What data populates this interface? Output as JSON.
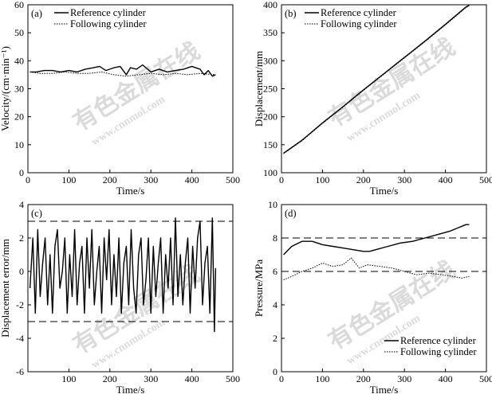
{
  "watermark": {
    "text": "有色金属在线",
    "url": "www.cnnmol.com"
  },
  "chart_data": [
    {
      "id": "a",
      "panel_label": "(a)",
      "type": "line",
      "xlabel": "Time/s",
      "ylabel": "Velocity/(cm·min⁻¹)",
      "xlim": [
        0,
        500
      ],
      "ylim": [
        0,
        60
      ],
      "xticks": [
        0,
        100,
        200,
        300,
        400,
        500
      ],
      "yticks": [
        0,
        10,
        20,
        30,
        40,
        50,
        60
      ],
      "legend_position": "top-left",
      "series": [
        {
          "name": "Reference cylinder",
          "style": "solid",
          "x": [
            5,
            20,
            40,
            60,
            80,
            100,
            120,
            140,
            160,
            175,
            190,
            210,
            225,
            240,
            250,
            265,
            280,
            300,
            320,
            340,
            360,
            380,
            400,
            420,
            430,
            440,
            450,
            458
          ],
          "y": [
            36,
            36,
            36.5,
            36.5,
            36,
            36.5,
            36,
            37,
            37.5,
            38,
            36.5,
            37.5,
            38,
            35,
            37.5,
            37,
            38.5,
            36,
            37,
            36,
            36.5,
            37,
            38,
            37,
            35,
            36.5,
            34.5,
            35
          ]
        },
        {
          "name": "Following cylinder",
          "style": "dotted",
          "x": [
            5,
            30,
            60,
            90,
            120,
            150,
            180,
            210,
            240,
            270,
            300,
            330,
            360,
            390,
            420,
            458
          ],
          "y": [
            36,
            35.5,
            35.5,
            36,
            35.5,
            35.5,
            36,
            35,
            34.5,
            35,
            35.5,
            35,
            35.5,
            35,
            35.5,
            35
          ]
        }
      ]
    },
    {
      "id": "b",
      "panel_label": "(b)",
      "type": "line",
      "xlabel": "Time/s",
      "ylabel": "Displacement/mm",
      "xlim": [
        0,
        500
      ],
      "ylim": [
        100,
        400
      ],
      "xticks": [
        0,
        100,
        200,
        300,
        400,
        500
      ],
      "yticks": [
        100,
        150,
        200,
        250,
        300,
        350,
        400
      ],
      "legend_position": "top-left",
      "series": [
        {
          "name": "Reference cylinder",
          "style": "solid",
          "x": [
            5,
            50,
            100,
            150,
            200,
            250,
            300,
            350,
            400,
            450,
            458
          ],
          "y": [
            135,
            158,
            189,
            218,
            248,
            277,
            306,
            335,
            365,
            396,
            399
          ]
        },
        {
          "name": "Following cylinder",
          "style": "dotted",
          "x": [
            5,
            50,
            100,
            150,
            200,
            250,
            300,
            350,
            400,
            450,
            458
          ],
          "y": [
            134,
            157,
            188,
            217,
            247,
            276,
            305,
            334,
            364,
            395,
            398
          ]
        }
      ]
    },
    {
      "id": "c",
      "panel_label": "(c)",
      "type": "line",
      "xlabel": "Time/s",
      "ylabel": "Displacement error/mm",
      "xlim": [
        0,
        500
      ],
      "ylim": [
        -6,
        4
      ],
      "xticks": [
        100,
        200,
        300,
        400,
        500
      ],
      "yticks": [
        -6,
        -4,
        -2,
        0,
        2,
        4
      ],
      "reference_lines": [
        3,
        -3
      ],
      "series": [
        {
          "name": "",
          "style": "solid",
          "x": [
            5,
            12,
            18,
            24,
            30,
            36,
            42,
            48,
            54,
            60,
            66,
            72,
            78,
            84,
            90,
            96,
            102,
            108,
            114,
            120,
            126,
            132,
            138,
            144,
            150,
            156,
            162,
            168,
            174,
            180,
            186,
            192,
            198,
            204,
            210,
            216,
            222,
            228,
            234,
            240,
            246,
            252,
            258,
            264,
            270,
            276,
            282,
            288,
            294,
            300,
            306,
            312,
            318,
            324,
            330,
            336,
            342,
            348,
            354,
            360,
            366,
            372,
            378,
            384,
            390,
            396,
            402,
            408,
            414,
            420,
            426,
            432,
            438,
            444,
            450,
            455,
            458
          ],
          "y": [
            -1,
            2,
            -2.5,
            2.5,
            -1.5,
            0.5,
            2,
            -2,
            1,
            -2.5,
            1.5,
            2.5,
            -1,
            0,
            2,
            -2.5,
            1,
            -1.5,
            2.5,
            -2,
            0.5,
            1.5,
            -2.5,
            2,
            -1,
            2.5,
            -2,
            0,
            1.5,
            -2.5,
            2,
            -0.5,
            2.5,
            -2,
            1,
            -1.5,
            2,
            -2.5,
            0.5,
            1.5,
            -2,
            2.5,
            -1,
            -2.5,
            1,
            2,
            -2,
            -0.5,
            2,
            -2.5,
            1.5,
            -1.5,
            0.5,
            2,
            -2.5,
            1,
            -1,
            2,
            -2,
            3.2,
            -1.5,
            1,
            -2,
            0.5,
            2,
            -2.5,
            1.5,
            -1,
            2,
            3,
            -2,
            0.5,
            1.5,
            -2.5,
            3.2,
            -3.6,
            0.2
          ]
        }
      ]
    },
    {
      "id": "d",
      "panel_label": "(d)",
      "type": "line",
      "xlabel": "Time/s",
      "ylabel": "Pressure/MPa",
      "xlim": [
        0,
        500
      ],
      "ylim": [
        0,
        10
      ],
      "xticks": [
        0,
        100,
        200,
        300,
        400,
        500
      ],
      "yticks": [
        0,
        2,
        4,
        6,
        8,
        10
      ],
      "reference_lines": [
        8,
        6
      ],
      "legend_position": "bottom-right",
      "series": [
        {
          "name": "Reference cylinder",
          "style": "solid",
          "x": [
            5,
            25,
            50,
            75,
            100,
            125,
            150,
            175,
            200,
            215,
            230,
            260,
            290,
            320,
            350,
            380,
            410,
            430,
            450,
            458
          ],
          "y": [
            7.0,
            7.5,
            7.8,
            7.8,
            7.6,
            7.5,
            7.4,
            7.3,
            7.2,
            7.2,
            7.3,
            7.5,
            7.7,
            7.8,
            8.0,
            8.2,
            8.4,
            8.6,
            8.8,
            8.8
          ]
        },
        {
          "name": "Following cylinder",
          "style": "dotted",
          "x": [
            5,
            25,
            50,
            75,
            100,
            125,
            150,
            170,
            190,
            210,
            240,
            270,
            300,
            330,
            360,
            390,
            420,
            440,
            458
          ],
          "y": [
            5.5,
            5.7,
            6.0,
            6.2,
            6.5,
            6.3,
            6.4,
            6.8,
            6.2,
            6.4,
            6.3,
            6.2,
            6.0,
            5.8,
            5.9,
            5.8,
            5.7,
            5.6,
            5.7
          ]
        }
      ]
    }
  ]
}
